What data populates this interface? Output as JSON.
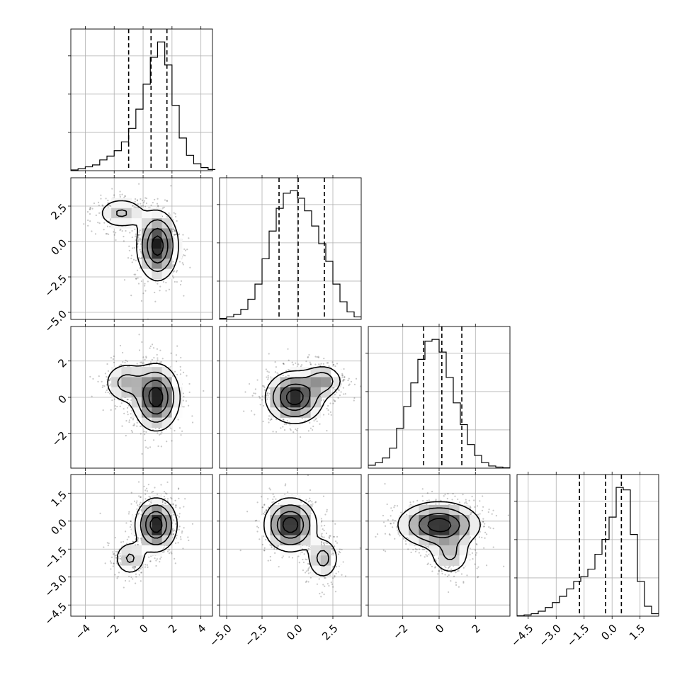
{
  "chart_data": {
    "type": "corner",
    "title": "",
    "grid": true,
    "variables": [
      {
        "index": 0,
        "xlim": [
          -5,
          4.8
        ],
        "ticks": [
          -4,
          -2,
          0,
          2,
          4
        ],
        "tick_labels": [
          "−4",
          "−2",
          "0",
          "2",
          "4"
        ],
        "quantiles": [
          -1.0,
          0.55,
          1.65
        ]
      },
      {
        "index": 1,
        "xlim": [
          -5.5,
          4.5
        ],
        "ticks": [
          -5.0,
          -2.5,
          0.0,
          2.5
        ],
        "tick_labels": [
          "−5.0",
          "−2.5",
          "0.0",
          "2.5"
        ],
        "quantiles": [
          -1.3,
          0.05,
          1.9
        ]
      },
      {
        "index": 2,
        "xlim": [
          -3.9,
          3.9
        ],
        "ticks": [
          -2,
          0,
          2
        ],
        "tick_labels": [
          "−2",
          "0",
          "2"
        ],
        "quantiles": [
          -0.85,
          0.15,
          1.25
        ]
      },
      {
        "index": 3,
        "xlim": [
          -5.1,
          2.5
        ],
        "ticks": [
          -4.5,
          -3.0,
          -1.5,
          0.0,
          1.5
        ],
        "tick_labels": [
          "−4.5",
          "−3.0",
          "−1.5",
          "0.0",
          "1.5"
        ],
        "quantiles": [
          -1.75,
          -0.35,
          0.5
        ]
      }
    ],
    "histograms": [
      {
        "var": 0,
        "bin_start": -5,
        "bin_width": 0.5,
        "counts": [
          2,
          5,
          10,
          15,
          28,
          38,
          52,
          75,
          110,
          160,
          225,
          295,
          335,
          275,
          170,
          85,
          40,
          18,
          8,
          3
        ]
      },
      {
        "var": 1,
        "bin_start": -5.5,
        "bin_width": 0.5,
        "counts": [
          2,
          5,
          10,
          20,
          40,
          70,
          120,
          175,
          220,
          250,
          255,
          240,
          215,
          185,
          150,
          115,
          70,
          35,
          15,
          5
        ]
      },
      {
        "var": 2,
        "bin_start": -3.9,
        "bin_width": 0.39,
        "counts": [
          8,
          15,
          28,
          55,
          110,
          170,
          235,
          300,
          350,
          355,
          320,
          250,
          180,
          120,
          65,
          35,
          15,
          6,
          3,
          1
        ]
      },
      {
        "var": 3,
        "bin_start": -5.1,
        "bin_width": 0.38,
        "counts": [
          2,
          5,
          10,
          20,
          35,
          55,
          80,
          110,
          140,
          160,
          190,
          250,
          310,
          400,
          520,
          510,
          330,
          140,
          40,
          10
        ]
      }
    ],
    "pairs": [
      {
        "row": 1,
        "col": 0,
        "modes": [
          {
            "x": 1.0,
            "y": -0.3,
            "sx": 0.7,
            "sy": 1.2,
            "w": 1.0
          },
          {
            "x": -1.5,
            "y": 2.0,
            "sx": 0.9,
            "sy": 0.6,
            "w": 0.35
          }
        ]
      },
      {
        "row": 2,
        "col": 0,
        "modes": [
          {
            "x": 0.9,
            "y": 0.0,
            "sx": 0.8,
            "sy": 0.9,
            "w": 1.0
          },
          {
            "x": -1.2,
            "y": 0.8,
            "sx": 0.8,
            "sy": 0.6,
            "w": 0.4
          }
        ]
      },
      {
        "row": 2,
        "col": 1,
        "modes": [
          {
            "x": -0.2,
            "y": 0.0,
            "sx": 1.0,
            "sy": 0.7,
            "w": 1.0
          },
          {
            "x": 1.8,
            "y": 0.9,
            "sx": 0.7,
            "sy": 0.45,
            "w": 0.5
          }
        ]
      },
      {
        "row": 3,
        "col": 0,
        "modes": [
          {
            "x": 0.9,
            "y": -0.2,
            "sx": 0.7,
            "sy": 0.7,
            "w": 1.0
          },
          {
            "x": -0.9,
            "y": -2.0,
            "sx": 0.6,
            "sy": 0.5,
            "w": 0.35
          }
        ]
      },
      {
        "row": 3,
        "col": 1,
        "modes": [
          {
            "x": -0.5,
            "y": -0.2,
            "sx": 0.9,
            "sy": 0.7,
            "w": 1.0
          },
          {
            "x": 1.8,
            "y": -2.0,
            "sx": 0.6,
            "sy": 0.6,
            "w": 0.4
          }
        ]
      },
      {
        "row": 3,
        "col": 2,
        "modes": [
          {
            "x": 0.0,
            "y": -0.2,
            "sx": 1.1,
            "sy": 0.6,
            "w": 1.0
          },
          {
            "x": 0.6,
            "y": -1.8,
            "sx": 0.6,
            "sy": 0.6,
            "w": 0.35
          }
        ]
      }
    ],
    "contour_levels": [
      0.12,
      0.32,
      0.6,
      0.85
    ]
  }
}
